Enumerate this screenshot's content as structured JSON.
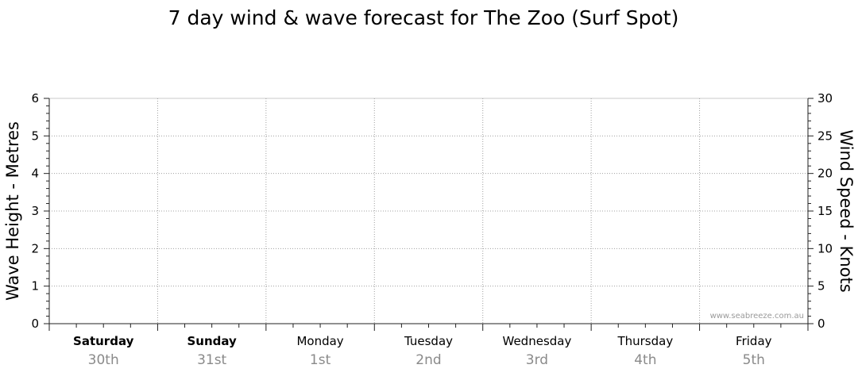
{
  "chart_data": {
    "type": "line",
    "title": "7 day wind & wave forecast for The Zoo (Surf Spot)",
    "y_left": {
      "label": "Wave Height - Metres",
      "range": [
        0,
        6
      ],
      "ticks": [
        0,
        1,
        2,
        3,
        4,
        5,
        6
      ]
    },
    "y_right": {
      "label": "Wind Speed - Knots",
      "range": [
        0,
        30
      ],
      "ticks": [
        0,
        5,
        10,
        15,
        20,
        25,
        30
      ]
    },
    "days": [
      {
        "name": "Saturday",
        "date": "30th",
        "bold": true
      },
      {
        "name": "Sunday",
        "date": "31st",
        "bold": true
      },
      {
        "name": "Monday",
        "date": "1st",
        "bold": false
      },
      {
        "name": "Tuesday",
        "date": "2nd",
        "bold": false
      },
      {
        "name": "Wednesday",
        "date": "3rd",
        "bold": false
      },
      {
        "name": "Thursday",
        "date": "4th",
        "bold": false
      },
      {
        "name": "Friday",
        "date": "5th",
        "bold": false
      }
    ],
    "series": [],
    "grid": true,
    "watermark": "www.seabreeze.com.au"
  }
}
